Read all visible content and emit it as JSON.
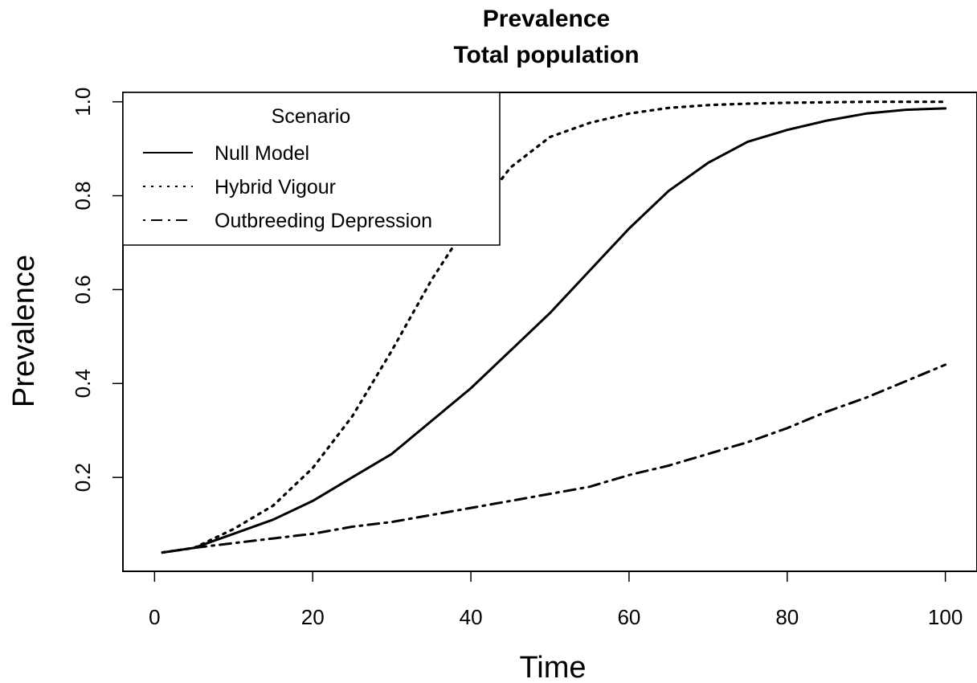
{
  "chart_data": {
    "type": "line",
    "title": "Prevalence",
    "subtitle": "Total population",
    "xlabel": "Time",
    "ylabel": "Prevalence",
    "xlim": [
      -4,
      104
    ],
    "ylim": [
      0.0,
      1.02
    ],
    "x_ticks": [
      0,
      20,
      40,
      60,
      80,
      100
    ],
    "x_tick_labels": [
      "0",
      "20",
      "40",
      "60",
      "80",
      "100"
    ],
    "y_ticks": [
      0.2,
      0.4,
      0.6,
      0.8,
      1.0
    ],
    "y_tick_labels": [
      "0.2",
      "0.4",
      "0.6",
      "0.8",
      "1.0"
    ],
    "grid": false,
    "legend": {
      "title": "Scenario",
      "position": "top-left"
    },
    "x": [
      1,
      5,
      10,
      15,
      20,
      25,
      30,
      35,
      40,
      45,
      50,
      55,
      60,
      65,
      70,
      75,
      80,
      85,
      90,
      95,
      100
    ],
    "series": [
      {
        "name": "Null Model",
        "line_style": "solid",
        "values": [
          0.04,
          0.05,
          0.08,
          0.11,
          0.15,
          0.2,
          0.25,
          0.32,
          0.39,
          0.47,
          0.55,
          0.64,
          0.73,
          0.81,
          0.87,
          0.915,
          0.94,
          0.96,
          0.975,
          0.983,
          0.986
        ]
      },
      {
        "name": "Hybrid Vigour",
        "line_style": "dotted",
        "values": [
          0.04,
          0.05,
          0.09,
          0.14,
          0.22,
          0.33,
          0.47,
          0.62,
          0.75,
          0.86,
          0.925,
          0.955,
          0.975,
          0.987,
          0.993,
          0.996,
          0.998,
          0.999,
          1.0,
          1.0,
          1.0
        ]
      },
      {
        "name": "Outbreeding Depression",
        "line_style": "dotdash",
        "values": [
          0.04,
          0.05,
          0.06,
          0.07,
          0.08,
          0.095,
          0.105,
          0.12,
          0.135,
          0.15,
          0.165,
          0.18,
          0.205,
          0.225,
          0.25,
          0.275,
          0.305,
          0.34,
          0.37,
          0.405,
          0.44
        ]
      }
    ]
  }
}
